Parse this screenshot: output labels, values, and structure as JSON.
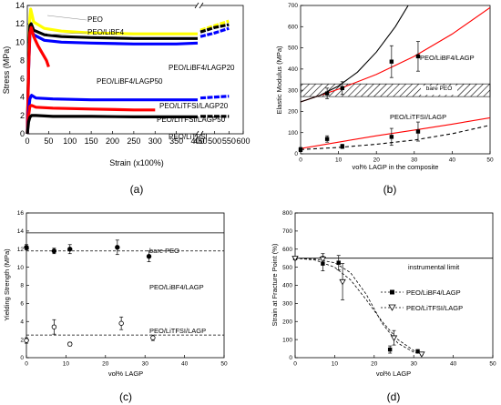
{
  "chart_data": [
    {
      "panel_label": "(a)",
      "type": "line",
      "xlabel": "Strain (x100%)",
      "ylabel": "Stress (MPa)",
      "x_ticks": [
        0,
        50,
        100,
        150,
        200,
        250,
        300,
        350,
        400,
        450,
        500,
        550,
        600
      ],
      "y_ticks": [
        0,
        2,
        4,
        6,
        8,
        10,
        12,
        14
      ],
      "xlim": [
        0,
        600
      ],
      "ylim": [
        0,
        14
      ],
      "axis_break_at": [
        400,
        450
      ],
      "series": [
        {
          "name": "PEO",
          "color": "#ffff00",
          "x": [
            0,
            3,
            6,
            8,
            15,
            40,
            80,
            150,
            250,
            350,
            400,
            450,
            500,
            550
          ],
          "y": [
            0,
            8,
            12.6,
            13.6,
            12.2,
            11.5,
            11.2,
            11.0,
            10.9,
            10.9,
            10.9,
            11.3,
            11.8,
            12.3
          ]
        },
        {
          "name": "PEO/LiBF4",
          "color": "#000000",
          "x": [
            0,
            3,
            6,
            9,
            15,
            40,
            80,
            150,
            250,
            350,
            400,
            450,
            500,
            550
          ],
          "y": [
            0,
            8,
            11.8,
            12.0,
            11.3,
            10.8,
            10.6,
            10.5,
            10.4,
            10.4,
            10.4,
            11.1,
            11.6,
            11.9
          ]
        },
        {
          "name": "PEO/LiBF4/LAGP20",
          "color": "#0000ff",
          "x": [
            0,
            3,
            6,
            9,
            15,
            40,
            80,
            150,
            250,
            350,
            400,
            450,
            500,
            550
          ],
          "y": [
            0,
            7,
            10.8,
            11.4,
            10.8,
            10.2,
            10.0,
            9.9,
            9.8,
            9.8,
            9.9,
            10.6,
            11.0,
            11.5
          ]
        },
        {
          "name": "PEO/LiBF4/LAGP50",
          "color": "#ff0000",
          "x": [
            0,
            3,
            6,
            9,
            15,
            25,
            35,
            45,
            50
          ],
          "y": [
            0,
            7,
            11.0,
            11.6,
            10.6,
            9.6,
            8.8,
            8.0,
            7.3
          ]
        },
        {
          "name": "PEO/LiTFSI/LAGP20",
          "color": "#0000ff",
          "x": [
            0,
            3,
            6,
            10,
            20,
            60,
            150,
            250,
            350,
            400,
            450,
            550
          ],
          "y": [
            0,
            2.5,
            3.8,
            4.2,
            3.9,
            3.8,
            3.7,
            3.7,
            3.7,
            3.7,
            3.9,
            4.1
          ]
        },
        {
          "name": "PEO/LiTFSI/LAGP50",
          "color": "#ff0000",
          "x": [
            0,
            3,
            6,
            10,
            20,
            60,
            150,
            250,
            300
          ],
          "y": [
            0,
            2.0,
            3.0,
            3.1,
            2.9,
            2.8,
            2.7,
            2.6,
            2.6
          ]
        },
        {
          "name": "PEO/LiTFSI",
          "color": "#000000",
          "x": [
            0,
            3,
            6,
            10,
            20,
            60,
            150,
            250,
            350,
            400,
            450,
            550
          ],
          "y": [
            0,
            1.3,
            1.8,
            2.0,
            2.0,
            1.9,
            1.9,
            1.85,
            1.85,
            1.85,
            1.9,
            1.9
          ]
        }
      ]
    },
    {
      "panel_label": "(b)",
      "type": "scatter",
      "xlabel": "vol% LAGP in the composite",
      "ylabel": "Elastic Modulus (MPa)",
      "x_ticks": [
        0,
        10,
        20,
        30,
        40,
        50
      ],
      "y_ticks": [
        0,
        100,
        200,
        300,
        400,
        500,
        600,
        700
      ],
      "xlim": [
        0,
        50
      ],
      "ylim": [
        0,
        700
      ],
      "band_label": "bare PEO",
      "band_range": [
        270,
        330
      ],
      "series": [
        {
          "name": "PEO/LiBF4/LAGP",
          "marker": "square",
          "x": [
            7,
            11,
            24,
            31
          ],
          "y": [
            285,
            310,
            435,
            460
          ],
          "err": [
            25,
            30,
            75,
            70
          ]
        },
        {
          "name": "PEO/LiTFSI/LAGP",
          "marker": "square",
          "x": [
            0,
            7,
            11,
            24,
            31
          ],
          "y": [
            20,
            70,
            35,
            80,
            105
          ],
          "err": [
            10,
            15,
            10,
            40,
            45
          ]
        }
      ],
      "fit_curves": [
        {
          "color": "#ff0000",
          "style": "solid",
          "x": [
            0,
            10,
            20,
            30,
            40,
            50
          ],
          "y": [
            245,
            305,
            375,
            460,
            565,
            690
          ]
        },
        {
          "color": "#000000",
          "style": "solid",
          "x": [
            0,
            5,
            10,
            15,
            20,
            25,
            28.4
          ],
          "y": [
            245,
            275,
            320,
            385,
            480,
            600,
            700
          ]
        },
        {
          "color": "#ff0000",
          "style": "solid",
          "x": [
            0,
            10,
            20,
            30,
            40,
            50
          ],
          "y": [
            25,
            55,
            85,
            112,
            140,
            170
          ]
        },
        {
          "color": "#000000",
          "style": "dashed",
          "x": [
            0,
            10,
            20,
            30,
            40,
            50
          ],
          "y": [
            20,
            30,
            45,
            65,
            95,
            135
          ]
        }
      ]
    },
    {
      "panel_label": "(c)",
      "type": "scatter",
      "xlabel": "vol% LAGP",
      "ylabel": "Yielding Strength (MPa)",
      "x_ticks": [
        0,
        10,
        20,
        30,
        40,
        50
      ],
      "y_ticks": [
        0,
        2,
        4,
        6,
        8,
        10,
        12,
        14,
        16
      ],
      "xlim": [
        0,
        50
      ],
      "ylim": [
        0,
        16
      ],
      "reference_lines": [
        {
          "label": "bare PEO",
          "y": 13.8,
          "style": "solid"
        },
        {
          "label": "",
          "y": 11.8,
          "style": "dashed"
        },
        {
          "label": "",
          "y": 2.5,
          "style": "dashed"
        }
      ],
      "series": [
        {
          "name": "PEO/LiBF4/LAGP",
          "marker": "filled-circle",
          "x": [
            0,
            7,
            11,
            23,
            31
          ],
          "y": [
            12.2,
            11.8,
            12.0,
            12.2,
            11.2
          ],
          "err": [
            0.3,
            0.3,
            0.5,
            0.8,
            0.6
          ]
        },
        {
          "name": "PEO/LiTFSI/LAGP",
          "marker": "open-circle",
          "x": [
            0,
            7,
            11,
            24,
            32
          ],
          "y": [
            1.9,
            3.4,
            1.5,
            3.8,
            2.2
          ],
          "err": [
            0.3,
            0.8,
            0.2,
            0.7,
            0.3
          ]
        }
      ]
    },
    {
      "panel_label": "(d)",
      "type": "scatter",
      "xlabel": "vol% LAGP",
      "ylabel": "Strain at Fracture Point (%)",
      "x_ticks": [
        0,
        10,
        20,
        30,
        40,
        50
      ],
      "y_ticks": [
        0,
        100,
        200,
        300,
        400,
        500,
        600,
        700,
        800
      ],
      "xlim": [
        0,
        50
      ],
      "ylim": [
        0,
        800
      ],
      "reference_lines": [
        {
          "label": "instrumental limit",
          "y": 550,
          "style": "solid"
        }
      ],
      "series": [
        {
          "name": "PEO/LiBF4/LAGP",
          "marker": "filled-square",
          "x": [
            0,
            7,
            11,
            24,
            31
          ],
          "y": [
            550,
            520,
            525,
            45,
            35
          ],
          "err": [
            0,
            40,
            40,
            20,
            10
          ]
        },
        {
          "name": "PEO/LiTFSI/LAGP",
          "marker": "open-triangle",
          "x": [
            0,
            7,
            12,
            25,
            32
          ],
          "y": [
            550,
            545,
            420,
            110,
            20
          ],
          "err": [
            0,
            30,
            100,
            40,
            5
          ]
        }
      ],
      "fit_curves": [
        {
          "series": "PEO/LiBF4/LAGP",
          "style": "dashed",
          "x": [
            0,
            5,
            10,
            14,
            18,
            22,
            26,
            30,
            32
          ],
          "y": [
            550,
            545,
            525,
            470,
            350,
            190,
            80,
            30,
            20
          ]
        },
        {
          "series": "PEO/LiTFSI/LAGP",
          "style": "dashed",
          "x": [
            0,
            5,
            10,
            14,
            18,
            22,
            26,
            30,
            32
          ],
          "y": [
            550,
            540,
            500,
            430,
            320,
            200,
            100,
            40,
            25
          ]
        }
      ]
    }
  ]
}
